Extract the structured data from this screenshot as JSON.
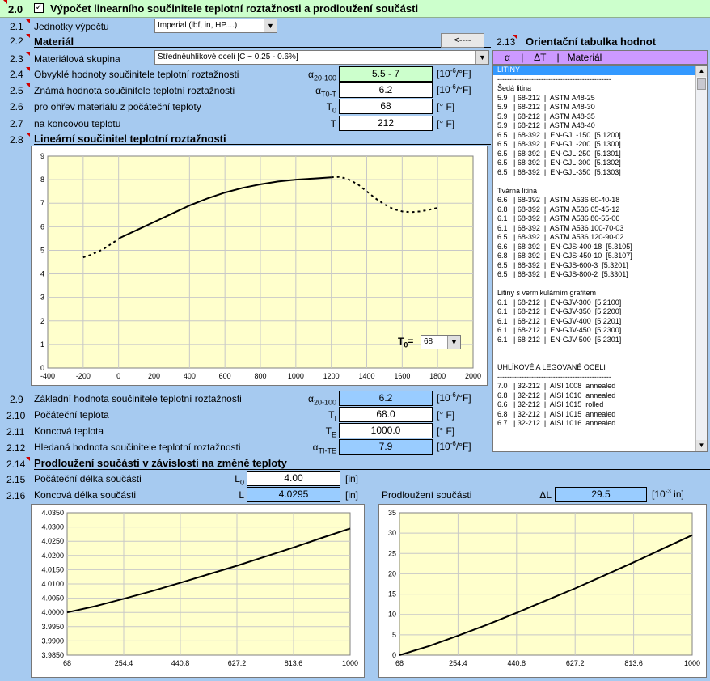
{
  "header": {
    "num": "2.0",
    "title": "Výpočet linearního součinitele teplotní roztažnosti a prodloužení součásti"
  },
  "rows": {
    "r2_1": {
      "num": "2.1",
      "label": "Jednotky výpočtu",
      "value": "Imperial (lbf, in, HP....)"
    },
    "r2_2": {
      "num": "2.2",
      "label": "Materiál",
      "button": "<----"
    },
    "r2_3": {
      "num": "2.3",
      "label": "Materiálová skupina",
      "value": "Středněuhlíkové oceli  [C ~ 0.25 - 0.6%]"
    },
    "r2_4": {
      "num": "2.4",
      "label": "Obvyklé hodnoty součinitele teplotní roztažnosti",
      "sym": "α",
      "sub": "20-100",
      "value": "5.5 - 7",
      "unit": "[10",
      "unit_exp": "-6",
      "unit_end": "/°F]"
    },
    "r2_5": {
      "num": "2.5",
      "label": "Známá hodnota součinitele teplotní roztažnosti",
      "sym": "α",
      "sub": "T0-T",
      "value": "6.2",
      "unit": "[10",
      "unit_exp": "-6",
      "unit_end": "/°F]"
    },
    "r2_6": {
      "num": "2.6",
      "label": "pro ohřev materiálu z počáteční teploty",
      "sym": "T",
      "sub": "0",
      "value": "68",
      "unit": "[° F]"
    },
    "r2_7": {
      "num": "2.7",
      "label": "na koncovou teplotu",
      "sym": "T",
      "value": "212",
      "unit": "[° F]"
    },
    "r2_8": {
      "num": "2.8",
      "label": "Lineární součinitel teplotní roztažnosti"
    },
    "r2_9": {
      "num": "2.9",
      "label": "Základní hodnota součinitele teplotní roztažnosti",
      "sym": "α",
      "sub": "20-100",
      "value": "6.2",
      "unit": "[10",
      "unit_exp": "-6",
      "unit_end": "/°F]"
    },
    "r2_10": {
      "num": "2.10",
      "label": "Počáteční teplota",
      "sym": "T",
      "sub": "I",
      "value": "68.0",
      "unit": "[° F]"
    },
    "r2_11": {
      "num": "2.11",
      "label": "Koncová teplota",
      "sym": "T",
      "sub": "E",
      "value": "1000.0",
      "unit": "[° F]"
    },
    "r2_12": {
      "num": "2.12",
      "label": "Hledaná hodnota součinitele teplotní roztažnosti",
      "sym": "α",
      "sub": "TI-TE",
      "value": "7.9",
      "unit": "[10",
      "unit_exp": "-6",
      "unit_end": "/°F]"
    },
    "r2_14": {
      "num": "2.14",
      "label": "Prodloužení součásti v závislosti na změně teploty"
    },
    "r2_15": {
      "num": "2.15",
      "label": "Počáteční délka součásti",
      "sym": "L",
      "sub": "0",
      "value": "4.00",
      "unit": "[in]"
    },
    "r2_16": {
      "num": "2.16",
      "label": "Koncová délka součásti",
      "sym": "L",
      "value": "4.0295",
      "unit": "[in]"
    },
    "elong": {
      "label": "Prodloužení součásti",
      "sym": "ΔL",
      "value": "29.5",
      "unit": "[10",
      "unit_exp": "-3",
      "unit_end": " in]"
    }
  },
  "t0_select": {
    "label": "T",
    "sub": "0",
    "eq": "=",
    "value": "68"
  },
  "table": {
    "num": "2.13",
    "title": "Orientační tabulka hodnot",
    "header": "α    |    ΔT    |   Materiál",
    "rows": [
      "LITINY",
      "-----------------------------------------------",
      "Šedá litina",
      "5.9   | 68-212  |  ASTM A48-25",
      "5.9   | 68-212  |  ASTM A48-30",
      "5.9   | 68-212  |  ASTM A48-35",
      "5.9   | 68-212  |  ASTM A48-40",
      "6.5   | 68-392  |  EN-GJL-150  [5.1200]",
      "6.5   | 68-392  |  EN-GJL-200  [5.1300]",
      "6.5   | 68-392  |  EN-GJL-250  [5.1301]",
      "6.5   | 68-392  |  EN-GJL-300  [5.1302]",
      "6.5   | 68-392  |  EN-GJL-350  [5.1303]",
      "",
      "Tvárná litina",
      "6.6   | 68-392  |  ASTM A536 60-40-18",
      "6.8   | 68-392  |  ASTM A536 65-45-12",
      "6.1   | 68-392  |  ASTM A536 80-55-06",
      "6.1   | 68-392  |  ASTM A536 100-70-03",
      "6.5   | 68-392  |  ASTM A536 120-90-02",
      "6.6   | 68-392  |  EN-GJS-400-18  [5.3105]",
      "6.8   | 68-392  |  EN-GJS-450-10  [5.3107]",
      "6.5   | 68-392  |  EN-GJS-600-3  [5.3201]",
      "6.5   | 68-392  |  EN-GJS-800-2  [5.3301]",
      "",
      "Litiny s vermikulárním grafitem",
      "6.1   | 68-212  |  EN-GJV-300  [5.2100]",
      "6.1   | 68-212  |  EN-GJV-350  [5.2200]",
      "6.1   | 68-212  |  EN-GJV-400  [5.2201]",
      "6.1   | 68-212  |  EN-GJV-450  [5.2300]",
      "6.1   | 68-212  |  EN-GJV-500  [5.2301]",
      "",
      "",
      "UHLÍKOVÉ A LEGOVANÉ OCELI",
      "-----------------------------------------------",
      "7.0   | 32-212  |  AISI 1008  annealed",
      "6.8   | 32-212  |  AISI 1010  annealed",
      "6.6   | 32-212  |  AISI 1015  rolled",
      "6.8   | 32-212  |  AISI 1015  annealed",
      "6.7   | 32-212  |  AISI 1016  annealed"
    ]
  },
  "colors": {
    "header_bg": "#ccffcc",
    "page_bg": "#a6caf0",
    "plot_bg": "#ffffcc",
    "input_green": "#ccffcc",
    "output_blue": "#99ccff",
    "table_head": "#cc99ff"
  },
  "chart_data": [
    {
      "type": "line",
      "title": "",
      "xlabel": "",
      "ylabel": "",
      "xlim": [
        -400,
        2000
      ],
      "ylim": [
        0,
        9
      ],
      "xticks": [
        "-400",
        "-200",
        "0",
        "200",
        "400",
        "600",
        "800",
        "1000",
        "1200",
        "1400",
        "1600",
        "1800",
        "2000"
      ],
      "yticks": [
        "0",
        "1",
        "2",
        "3",
        "4",
        "5",
        "6",
        "7",
        "8",
        "9"
      ],
      "series": [
        {
          "style": "dotted",
          "x": [
            -200,
            -180,
            -160,
            -140,
            -120,
            -100,
            -80,
            -60,
            -40,
            -20,
            0
          ],
          "y": [
            4.7,
            4.75,
            4.8,
            4.87,
            4.93,
            5.0,
            5.08,
            5.18,
            5.28,
            5.38,
            5.45
          ]
        },
        {
          "style": "solid",
          "x": [
            0,
            100,
            200,
            300,
            400,
            500,
            600,
            700,
            800,
            900,
            1000,
            1100,
            1200
          ],
          "y": [
            5.5,
            5.85,
            6.2,
            6.55,
            6.9,
            7.2,
            7.45,
            7.65,
            7.8,
            7.92,
            8.0,
            8.05,
            8.1
          ]
        },
        {
          "style": "dotted",
          "x": [
            1200,
            1250,
            1300,
            1350,
            1400,
            1450,
            1500,
            1550,
            1600,
            1650,
            1700,
            1750,
            1800
          ],
          "y": [
            8.1,
            8.12,
            8.0,
            7.8,
            7.5,
            7.2,
            6.95,
            6.75,
            6.65,
            6.62,
            6.65,
            6.72,
            6.8
          ]
        }
      ]
    },
    {
      "type": "line",
      "title": "",
      "xlabel": "",
      "ylabel": "",
      "xlim": [
        68,
        1000
      ],
      "ylim": [
        3.985,
        4.035
      ],
      "xticks": [
        "68",
        "254.4",
        "440.8",
        "627.2",
        "813.6",
        "1000"
      ],
      "yticks": [
        "3.9850",
        "3.9900",
        "3.9950",
        "4.0000",
        "4.0050",
        "4.0100",
        "4.0150",
        "4.0200",
        "4.0250",
        "4.0300",
        "4.0350"
      ],
      "series": [
        {
          "x": [
            68,
            161.2,
            254.4,
            347.6,
            440.8,
            534,
            627.2,
            720.4,
            813.6,
            906.8,
            1000
          ],
          "y": [
            4.0,
            4.0022,
            4.0048,
            4.0075,
            4.0104,
            4.0134,
            4.0164,
            4.0196,
            4.0228,
            4.0262,
            4.0295
          ]
        }
      ]
    },
    {
      "type": "line",
      "title": "",
      "xlabel": "",
      "ylabel": "",
      "xlim": [
        68,
        1000
      ],
      "ylim": [
        0,
        35
      ],
      "xticks": [
        "68",
        "254.4",
        "440.8",
        "627.2",
        "813.6",
        "1000"
      ],
      "yticks": [
        "0",
        "5",
        "10",
        "15",
        "20",
        "25",
        "30",
        "35"
      ],
      "series": [
        {
          "x": [
            68,
            161.2,
            254.4,
            347.6,
            440.8,
            534,
            627.2,
            720.4,
            813.6,
            906.8,
            1000
          ],
          "y": [
            0,
            2.2,
            4.8,
            7.5,
            10.4,
            13.4,
            16.4,
            19.6,
            22.8,
            26.2,
            29.5
          ]
        }
      ]
    }
  ]
}
